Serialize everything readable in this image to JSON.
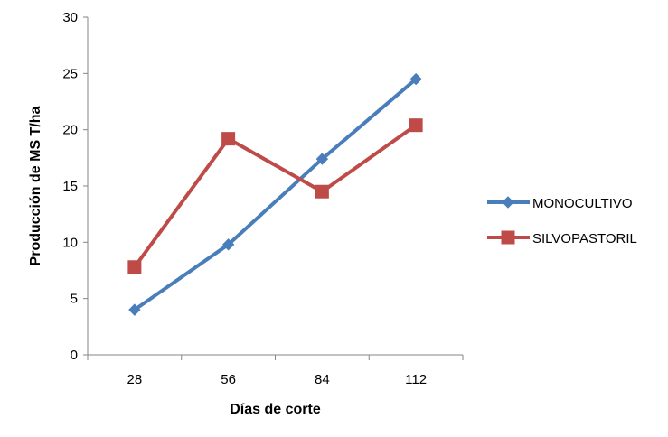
{
  "chart_data": {
    "type": "line",
    "categories": [
      "28",
      "56",
      "84",
      "112"
    ],
    "series": [
      {
        "name": "MONOCULTIVO",
        "values": [
          4.0,
          9.8,
          17.4,
          24.5
        ],
        "color": "#4a7ebb",
        "marker": "diamond"
      },
      {
        "name": "SILVOPASTORIL",
        "values": [
          7.8,
          19.2,
          14.5,
          20.4
        ],
        "color": "#be4b48",
        "marker": "square"
      }
    ],
    "title": "",
    "xlabel": "Días de corte",
    "ylabel": "Producción de MS T/ha",
    "ylim": [
      0,
      30
    ],
    "yticks": [
      0,
      5,
      10,
      15,
      20,
      25,
      30
    ],
    "grid": false,
    "legend": "right"
  }
}
